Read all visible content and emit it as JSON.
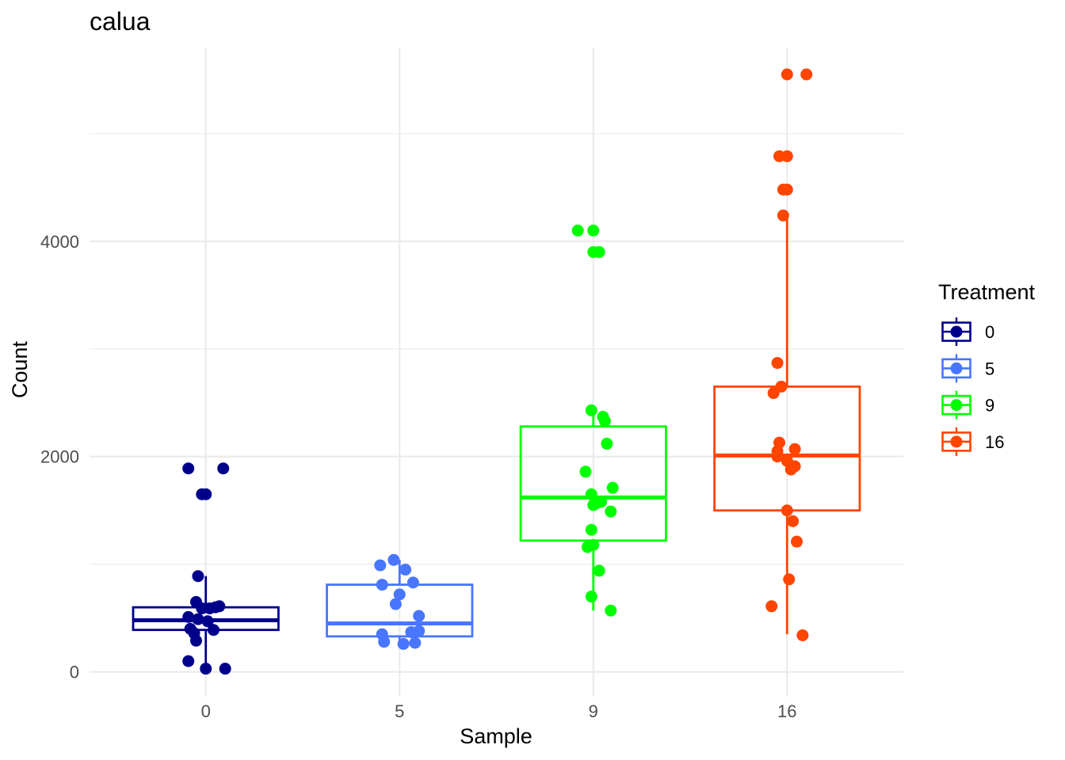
{
  "chart_data": {
    "type": "box",
    "title": "calua",
    "xlabel": "Sample",
    "ylabel": "Count",
    "categories": [
      "0",
      "5",
      "9",
      "16"
    ],
    "ylim": [
      -230,
      5800
    ],
    "yticks": [
      0,
      2000,
      4000
    ],
    "grid": true,
    "legend": {
      "title": "Treatment",
      "position": "right",
      "labels": [
        "0",
        "5",
        "9",
        "16"
      ]
    },
    "colors": [
      "#00008B",
      "#4876FF",
      "#00FF00",
      "#FF4500"
    ],
    "series": [
      {
        "category": "0",
        "box": {
          "lower_whisker": 30,
          "q1": 390,
          "median": 480,
          "q3": 600,
          "upper_whisker": 890
        },
        "points": [
          {
            "x": -0.09,
            "y": 1890
          },
          {
            "x": 0.09,
            "y": 1890
          },
          {
            "x": -0.02,
            "y": 1650
          },
          {
            "x": 0.0,
            "y": 1650
          },
          {
            "x": -0.04,
            "y": 890
          },
          {
            "x": -0.05,
            "y": 650
          },
          {
            "x": 0.07,
            "y": 610
          },
          {
            "x": 0.05,
            "y": 600
          },
          {
            "x": -0.02,
            "y": 590
          },
          {
            "x": 0.02,
            "y": 590
          },
          {
            "x": -0.09,
            "y": 510
          },
          {
            "x": -0.04,
            "y": 490
          },
          {
            "x": 0.01,
            "y": 470
          },
          {
            "x": -0.08,
            "y": 400
          },
          {
            "x": 0.04,
            "y": 390
          },
          {
            "x": -0.06,
            "y": 360
          },
          {
            "x": -0.05,
            "y": 290
          },
          {
            "x": -0.09,
            "y": 100
          },
          {
            "x": 0.0,
            "y": 30
          },
          {
            "x": 0.1,
            "y": 30
          }
        ]
      },
      {
        "category": "5",
        "box": {
          "lower_whisker": 250,
          "q1": 330,
          "median": 450,
          "q3": 810,
          "upper_whisker": 1040
        },
        "points": [
          {
            "x": -0.03,
            "y": 1040
          },
          {
            "x": -0.1,
            "y": 990
          },
          {
            "x": 0.03,
            "y": 950
          },
          {
            "x": 0.07,
            "y": 830
          },
          {
            "x": -0.09,
            "y": 810
          },
          {
            "x": 0.0,
            "y": 720
          },
          {
            "x": -0.02,
            "y": 630
          },
          {
            "x": 0.1,
            "y": 520
          },
          {
            "x": 0.1,
            "y": 380
          },
          {
            "x": 0.06,
            "y": 370
          },
          {
            "x": -0.09,
            "y": 350
          },
          {
            "x": -0.08,
            "y": 280
          },
          {
            "x": 0.08,
            "y": 270
          },
          {
            "x": 0.02,
            "y": 260
          }
        ]
      },
      {
        "category": "9",
        "box": {
          "lower_whisker": 570,
          "q1": 1220,
          "median": 1620,
          "q3": 2280,
          "upper_whisker": 2380
        },
        "points": [
          {
            "x": -0.08,
            "y": 4100
          },
          {
            "x": 0.0,
            "y": 4100
          },
          {
            "x": 0.0,
            "y": 3900
          },
          {
            "x": 0.03,
            "y": 3900
          },
          {
            "x": -0.01,
            "y": 2430
          },
          {
            "x": 0.05,
            "y": 2370
          },
          {
            "x": 0.06,
            "y": 2330
          },
          {
            "x": 0.07,
            "y": 2120
          },
          {
            "x": -0.04,
            "y": 1860
          },
          {
            "x": 0.1,
            "y": 1710
          },
          {
            "x": -0.01,
            "y": 1650
          },
          {
            "x": 0.04,
            "y": 1580
          },
          {
            "x": 0.02,
            "y": 1570
          },
          {
            "x": 0.0,
            "y": 1550
          },
          {
            "x": 0.09,
            "y": 1490
          },
          {
            "x": -0.01,
            "y": 1320
          },
          {
            "x": 0.0,
            "y": 1180
          },
          {
            "x": -0.03,
            "y": 1160
          },
          {
            "x": 0.03,
            "y": 940
          },
          {
            "x": -0.01,
            "y": 700
          },
          {
            "x": 0.09,
            "y": 570
          }
        ]
      },
      {
        "category": "16",
        "box": {
          "lower_whisker": 350,
          "q1": 1500,
          "median": 2010,
          "q3": 2650,
          "upper_whisker": 4230
        },
        "points": [
          {
            "x": 0.0,
            "y": 5550
          },
          {
            "x": 0.1,
            "y": 5550
          },
          {
            "x": -0.04,
            "y": 4790
          },
          {
            "x": 0.0,
            "y": 4790
          },
          {
            "x": -0.02,
            "y": 4480
          },
          {
            "x": 0.0,
            "y": 4480
          },
          {
            "x": -0.02,
            "y": 4240
          },
          {
            "x": -0.05,
            "y": 2870
          },
          {
            "x": -0.03,
            "y": 2650
          },
          {
            "x": -0.07,
            "y": 2590
          },
          {
            "x": -0.04,
            "y": 2130
          },
          {
            "x": 0.04,
            "y": 2070
          },
          {
            "x": -0.05,
            "y": 2050
          },
          {
            "x": -0.05,
            "y": 2000
          },
          {
            "x": 0.0,
            "y": 1960
          },
          {
            "x": 0.04,
            "y": 1910
          },
          {
            "x": 0.02,
            "y": 1880
          },
          {
            "x": 0.0,
            "y": 1500
          },
          {
            "x": 0.03,
            "y": 1400
          },
          {
            "x": 0.05,
            "y": 1210
          },
          {
            "x": 0.01,
            "y": 860
          },
          {
            "x": -0.08,
            "y": 610
          },
          {
            "x": 0.08,
            "y": 340
          }
        ]
      }
    ]
  }
}
